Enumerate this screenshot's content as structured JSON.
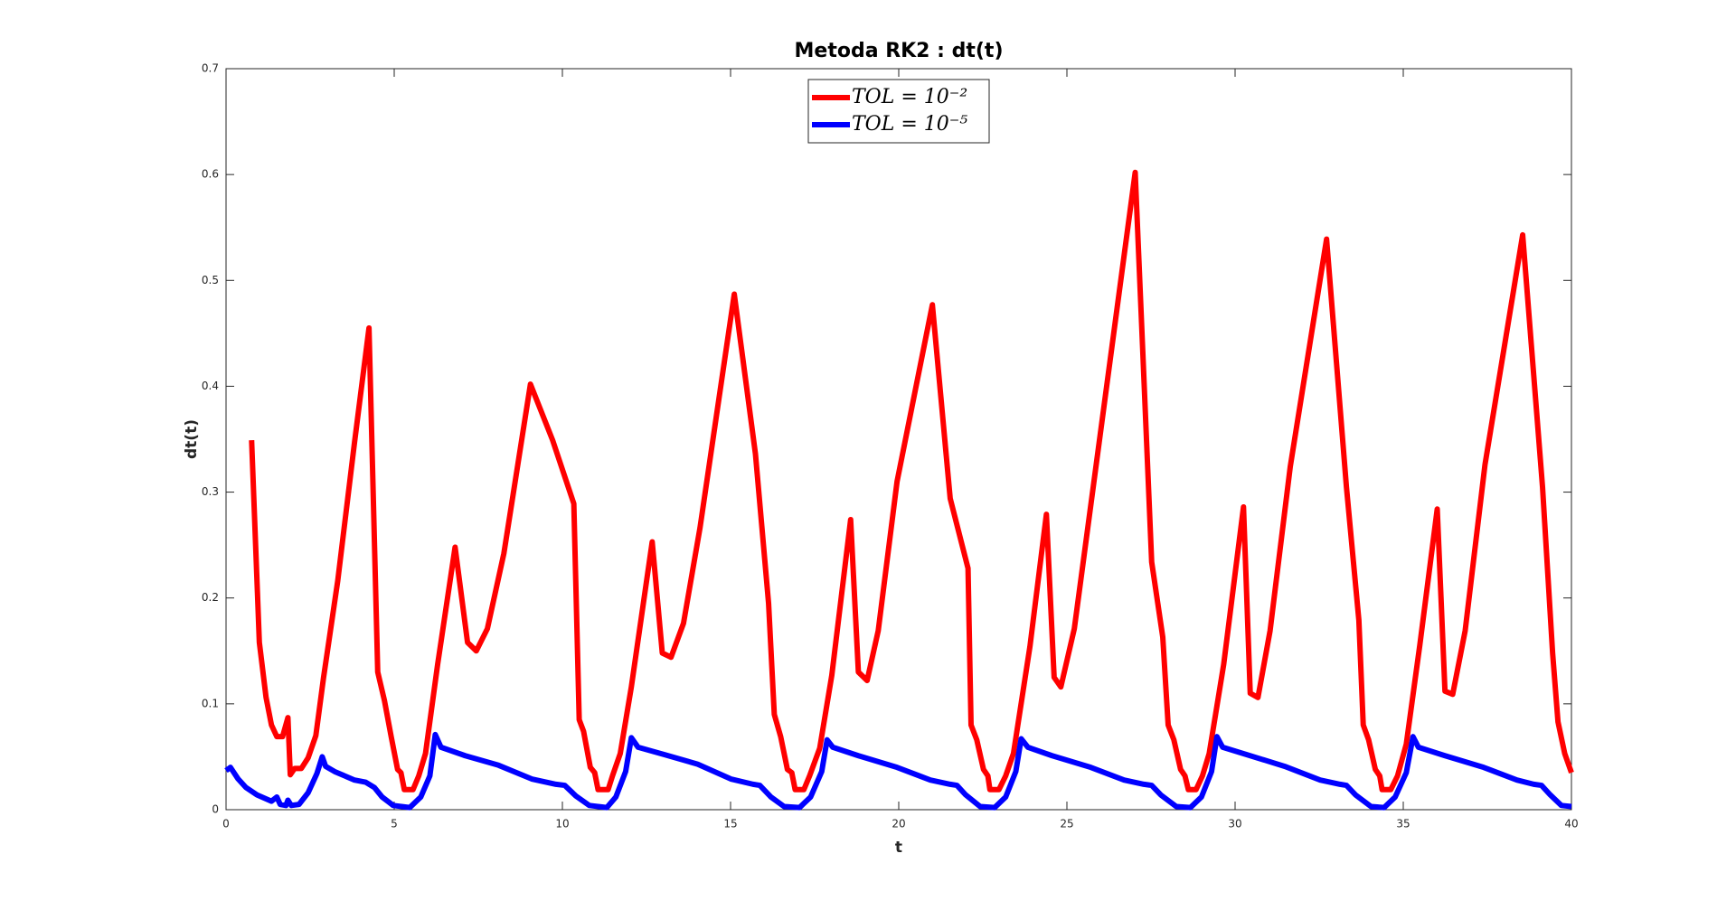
{
  "chart_data": {
    "type": "line",
    "title": "Metoda RK2 : dt(t)",
    "x_label": "t",
    "y_label": "dt(t)",
    "xlim": [
      0,
      40
    ],
    "ylim": [
      0,
      0.7
    ],
    "xticks": [
      0,
      5,
      10,
      15,
      20,
      25,
      30,
      35,
      40
    ],
    "yticks": [
      0,
      0.1,
      0.2,
      0.3,
      0.4,
      0.5,
      0.6,
      0.7
    ],
    "grid": false,
    "legend": "north",
    "series": [
      {
        "name": "TOL = 10⁻²",
        "color": "#ff0000",
        "x": [
          0.76,
          0.99,
          1.19,
          1.35,
          1.51,
          1.68,
          1.84,
          1.91,
          2.04,
          2.24,
          2.44,
          2.67,
          2.9,
          3.32,
          3.82,
          4.25,
          4.51,
          4.71,
          4.91,
          5.1,
          5.2,
          5.3,
          5.56,
          5.73,
          5.93,
          6.29,
          6.81,
          7.18,
          7.44,
          7.77,
          8.26,
          9.05,
          9.71,
          10.34,
          10.5,
          10.63,
          10.83,
          10.96,
          11.06,
          11.36,
          11.49,
          11.72,
          12.05,
          12.67,
          12.97,
          13.23,
          13.6,
          14.09,
          15.11,
          15.74,
          16.13,
          16.3,
          16.49,
          16.69,
          16.82,
          16.92,
          17.18,
          17.35,
          17.65,
          18.01,
          18.57,
          18.8,
          19.06,
          19.39,
          19.95,
          21.0,
          21.53,
          22.06,
          22.15,
          22.32,
          22.52,
          22.65,
          22.71,
          22.98,
          23.18,
          23.41,
          23.9,
          24.39,
          24.62,
          24.82,
          25.22,
          27.03,
          27.52,
          27.85,
          28.01,
          28.18,
          28.38,
          28.51,
          28.61,
          28.84,
          29.03,
          29.23,
          29.66,
          30.25,
          30.45,
          30.68,
          31.04,
          31.64,
          32.72,
          33.31,
          33.68,
          33.81,
          33.97,
          34.17,
          34.3,
          34.37,
          34.63,
          34.83,
          35.09,
          35.49,
          36.01,
          36.24,
          36.47,
          36.84,
          37.43,
          38.55,
          39.14,
          39.44,
          39.6,
          39.8,
          40.0
        ],
        "values": [
          0.349,
          0.158,
          0.106,
          0.08,
          0.069,
          0.069,
          0.087,
          0.033,
          0.039,
          0.039,
          0.049,
          0.07,
          0.125,
          0.216,
          0.347,
          0.455,
          0.13,
          0.103,
          0.069,
          0.038,
          0.035,
          0.019,
          0.019,
          0.032,
          0.053,
          0.137,
          0.248,
          0.158,
          0.15,
          0.171,
          0.242,
          0.402,
          0.349,
          0.289,
          0.085,
          0.074,
          0.04,
          0.035,
          0.019,
          0.019,
          0.032,
          0.053,
          0.116,
          0.253,
          0.148,
          0.144,
          0.176,
          0.266,
          0.487,
          0.336,
          0.195,
          0.09,
          0.069,
          0.038,
          0.035,
          0.019,
          0.019,
          0.032,
          0.058,
          0.127,
          0.274,
          0.13,
          0.122,
          0.169,
          0.31,
          0.477,
          0.294,
          0.228,
          0.08,
          0.066,
          0.038,
          0.032,
          0.019,
          0.019,
          0.032,
          0.053,
          0.154,
          0.279,
          0.125,
          0.116,
          0.171,
          0.602,
          0.234,
          0.163,
          0.08,
          0.066,
          0.038,
          0.032,
          0.019,
          0.019,
          0.032,
          0.053,
          0.137,
          0.286,
          0.11,
          0.106,
          0.169,
          0.324,
          0.539,
          0.305,
          0.179,
          0.08,
          0.066,
          0.038,
          0.032,
          0.019,
          0.019,
          0.032,
          0.062,
          0.155,
          0.284,
          0.112,
          0.109,
          0.169,
          0.326,
          0.543,
          0.305,
          0.148,
          0.083,
          0.053,
          0.035
        ]
      },
      {
        "name": "TOL = 10⁻⁵",
        "color": "#0000ff",
        "x": [
          0,
          0.13,
          0.36,
          0.59,
          0.92,
          1.35,
          1.51,
          1.61,
          1.78,
          1.84,
          1.94,
          2.17,
          2.44,
          2.7,
          2.86,
          2.96,
          3.23,
          3.82,
          4.15,
          4.41,
          4.64,
          4.97,
          5.46,
          5.79,
          6.06,
          6.22,
          6.39,
          7.11,
          8.1,
          9.09,
          9.81,
          10.07,
          10.4,
          10.8,
          11.32,
          11.59,
          11.88,
          12.05,
          12.25,
          13.04,
          14.02,
          15.01,
          15.67,
          15.87,
          16.2,
          16.59,
          17.05,
          17.38,
          17.71,
          17.87,
          18.04,
          18.8,
          19.95,
          20.94,
          21.53,
          21.73,
          21.99,
          22.42,
          22.85,
          23.18,
          23.48,
          23.64,
          23.84,
          24.56,
          25.71,
          26.7,
          27.29,
          27.52,
          27.79,
          28.25,
          28.67,
          29.0,
          29.3,
          29.46,
          29.63,
          30.35,
          31.47,
          32.53,
          33.12,
          33.31,
          33.58,
          34.04,
          34.43,
          34.76,
          35.09,
          35.29,
          35.45,
          36.24,
          37.39,
          38.38,
          38.88,
          39.11,
          39.37,
          39.7,
          40.0
        ],
        "values": [
          0.037,
          0.04,
          0.029,
          0.021,
          0.014,
          0.008,
          0.012,
          0.005,
          0.004,
          0.009,
          0.004,
          0.005,
          0.016,
          0.034,
          0.05,
          0.041,
          0.036,
          0.028,
          0.026,
          0.021,
          0.012,
          0.004,
          0.002,
          0.012,
          0.032,
          0.071,
          0.059,
          0.051,
          0.042,
          0.029,
          0.024,
          0.023,
          0.013,
          0.004,
          0.002,
          0.012,
          0.036,
          0.068,
          0.059,
          0.052,
          0.043,
          0.029,
          0.024,
          0.023,
          0.012,
          0.003,
          0.002,
          0.012,
          0.036,
          0.066,
          0.059,
          0.051,
          0.04,
          0.028,
          0.024,
          0.023,
          0.014,
          0.003,
          0.002,
          0.012,
          0.036,
          0.067,
          0.059,
          0.051,
          0.04,
          0.028,
          0.024,
          0.023,
          0.014,
          0.003,
          0.002,
          0.012,
          0.036,
          0.069,
          0.059,
          0.052,
          0.041,
          0.028,
          0.024,
          0.023,
          0.014,
          0.003,
          0.002,
          0.012,
          0.035,
          0.069,
          0.059,
          0.051,
          0.04,
          0.028,
          0.024,
          0.023,
          0.014,
          0.004,
          0.003
        ]
      }
    ]
  }
}
